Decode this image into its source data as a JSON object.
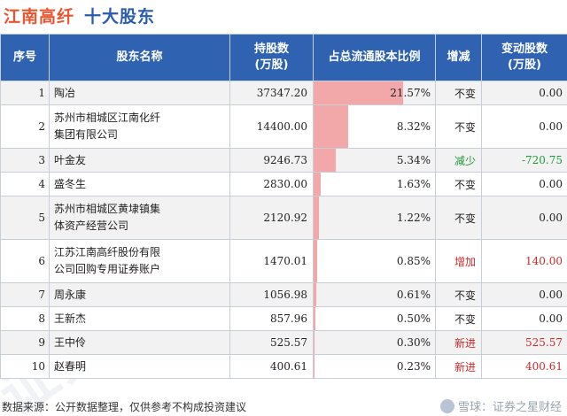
{
  "title": {
    "company": "江南高纤",
    "subtitle": "十大股东"
  },
  "table": {
    "headers": [
      "序号",
      "股东名称",
      "持股数\n(万股)",
      "占总流通股本比例",
      "增减",
      "变动股数\n(万股)"
    ],
    "rows": [
      {
        "rank": "1",
        "name_lines": [
          "陶冶"
        ],
        "shares": "37347.20",
        "ratio": "21.57%",
        "ratio_value": 21.57,
        "change": "不变",
        "change_type": "none",
        "qty": "0.00"
      },
      {
        "rank": "2",
        "name_lines": [
          "苏州市相城区江南化纤",
          "集团有限公司"
        ],
        "shares": "14400.00",
        "ratio": "8.32%",
        "ratio_value": 8.32,
        "change": "不变",
        "change_type": "none",
        "qty": "0.00"
      },
      {
        "rank": "3",
        "name_lines": [
          "叶金友"
        ],
        "shares": "9246.73",
        "ratio": "5.34%",
        "ratio_value": 5.34,
        "change": "减少",
        "change_type": "down",
        "qty": "-720.75"
      },
      {
        "rank": "4",
        "name_lines": [
          "盛冬生"
        ],
        "shares": "2830.00",
        "ratio": "1.63%",
        "ratio_value": 1.63,
        "change": "不变",
        "change_type": "none",
        "qty": "0.00"
      },
      {
        "rank": "5",
        "name_lines": [
          "苏州市相城区黄埭镇集",
          "体资产经营公司"
        ],
        "shares": "2120.92",
        "ratio": "1.22%",
        "ratio_value": 1.22,
        "change": "不变",
        "change_type": "none",
        "qty": "0.00"
      },
      {
        "rank": "6",
        "name_lines": [
          "江苏江南高纤股份有限",
          "公司回购专用证券账户"
        ],
        "shares": "1470.01",
        "ratio": "0.85%",
        "ratio_value": 0.85,
        "change": "增加",
        "change_type": "up",
        "qty": "140.00"
      },
      {
        "rank": "7",
        "name_lines": [
          "周永康"
        ],
        "shares": "1056.98",
        "ratio": "0.61%",
        "ratio_value": 0.61,
        "change": "不变",
        "change_type": "none",
        "qty": "0.00"
      },
      {
        "rank": "8",
        "name_lines": [
          "王新杰"
        ],
        "shares": "857.96",
        "ratio": "0.50%",
        "ratio_value": 0.5,
        "change": "不变",
        "change_type": "none",
        "qty": "0.00"
      },
      {
        "rank": "9",
        "name_lines": [
          "王中伶"
        ],
        "shares": "525.57",
        "ratio": "0.30%",
        "ratio_value": 0.3,
        "change": "新进",
        "change_type": "up",
        "qty": "525.57"
      },
      {
        "rank": "10",
        "name_lines": [
          "赵春明"
        ],
        "shares": "400.61",
        "ratio": "0.23%",
        "ratio_value": 0.23,
        "change": "新进",
        "change_type": "up",
        "qty": "400.61"
      }
    ]
  },
  "footer": {
    "source": "数据来源：公开数据整理，仅供参考不构成投资建议",
    "brand": "雪球：证券之星财经"
  },
  "watermark": "证券之星",
  "colors": {
    "header_bg": "#2f63b1",
    "title_company": "#e8542f",
    "title_sub": "#2a5cad",
    "bar": "#f2a8a8",
    "up": "#d0282b",
    "down": "#1f9a3a"
  }
}
